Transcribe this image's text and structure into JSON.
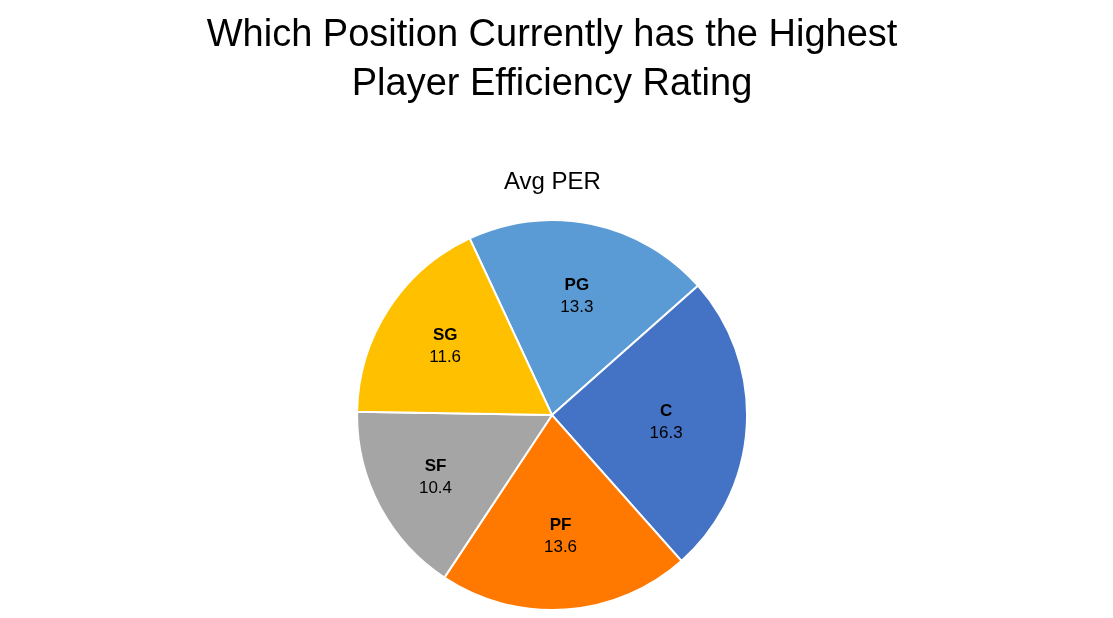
{
  "chart_data": {
    "type": "pie",
    "title": "Which Position Currently has the Highest Player Efficiency Rating",
    "subtitle": "Avg PER",
    "categories": [
      "PG",
      "C",
      "PF",
      "SF",
      "SG"
    ],
    "values": [
      13.3,
      16.3,
      13.6,
      10.4,
      11.6
    ],
    "colors": [
      "#5b9bd5",
      "#4472c4",
      "#ff7800",
      "#a5a5a5",
      "#ffc000"
    ],
    "data_labels": true,
    "legend": false
  }
}
